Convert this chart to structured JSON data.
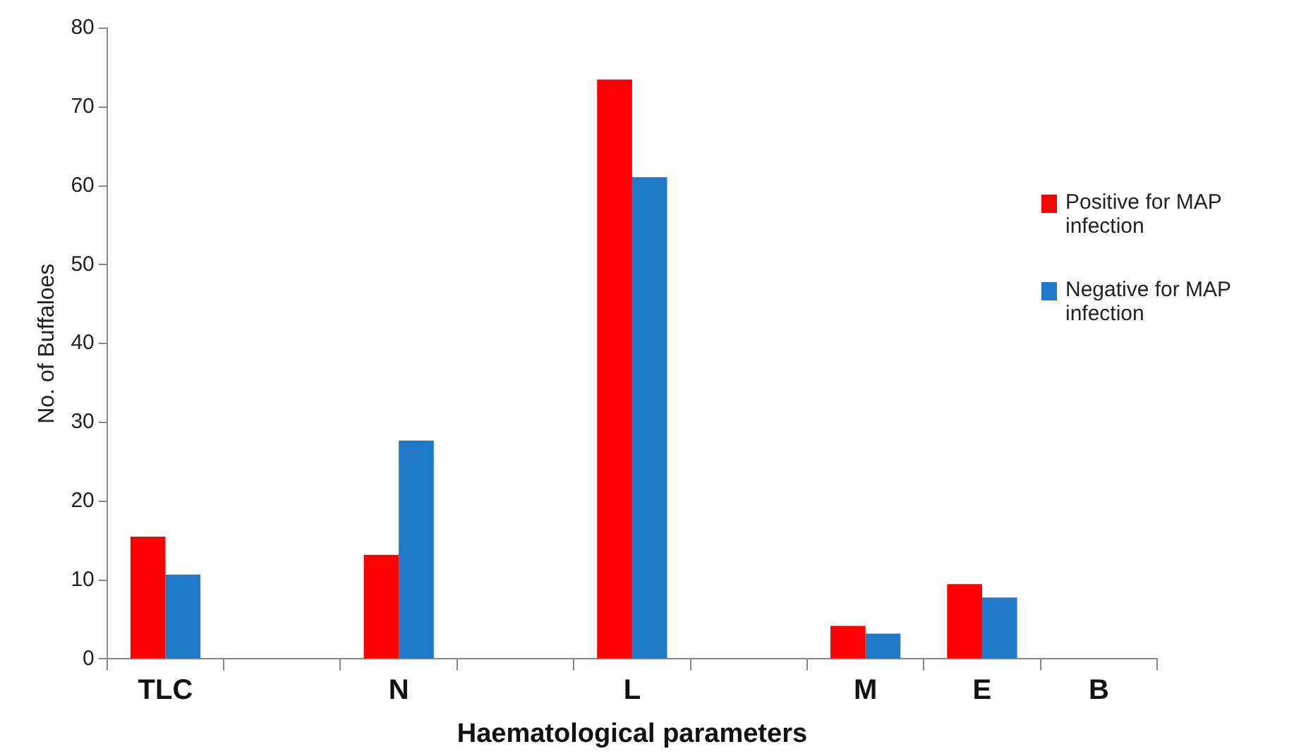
{
  "chart_data": {
    "type": "bar",
    "xlabel": "Haematological parameters",
    "ylabel": "No. of Buffaloes",
    "categories": [
      "TLC",
      null,
      "N",
      null,
      "L",
      null,
      "M",
      "E",
      "B"
    ],
    "series": [
      {
        "name": "Positive for MAP infection",
        "color": "#ff0000",
        "values": [
          15.5,
          null,
          13.2,
          null,
          73.5,
          null,
          4.2,
          9.5,
          null
        ]
      },
      {
        "name": "Negative for MAP infection",
        "color": "#1f78c8",
        "values": [
          10.7,
          null,
          27.7,
          null,
          61.1,
          null,
          3.2,
          7.8,
          null
        ]
      }
    ],
    "ylim": [
      0,
      80
    ],
    "yticks": [
      0,
      10,
      20,
      30,
      40,
      50,
      60,
      70,
      80
    ],
    "grid": false,
    "legend": "right"
  }
}
